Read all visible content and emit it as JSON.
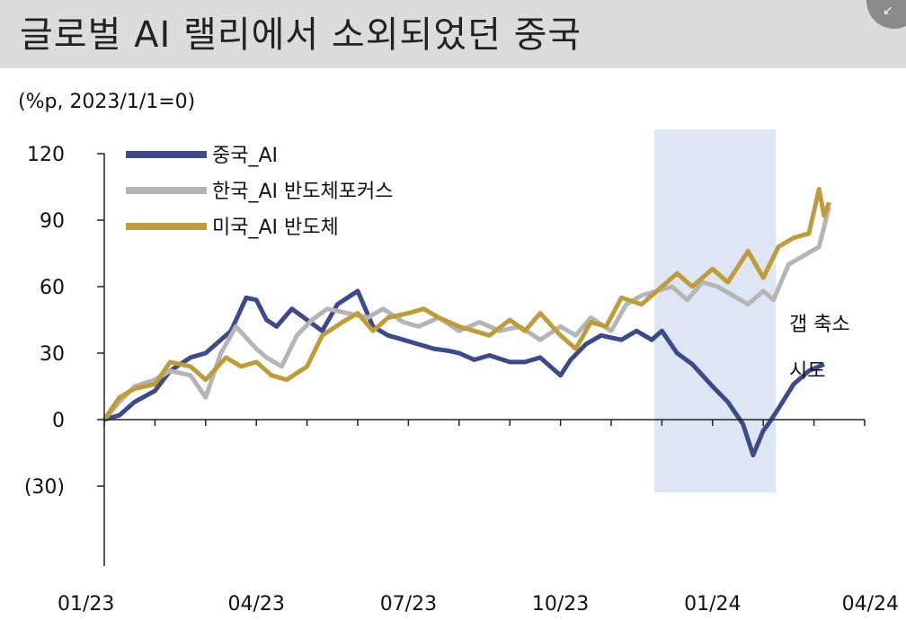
{
  "title": "글로벌 AI 랠리에서 소외되었던 중국",
  "corner_icon": "expand-arrow-icon",
  "chart_data": {
    "type": "line",
    "unit_label": "(%p, 2023/1/1=0)",
    "xlabel": "",
    "ylabel": "",
    "ylim": [
      -30,
      120
    ],
    "y_ticks": [
      "120",
      "90",
      "60",
      "30",
      "0",
      "(30)"
    ],
    "y_tick_values": [
      120,
      90,
      60,
      30,
      0,
      -30
    ],
    "x_ticks": [
      "01/23",
      "04/23",
      "07/23",
      "10/23",
      "01/24",
      "04/24"
    ],
    "x_tick_months": [
      0,
      3,
      6,
      9,
      12,
      15
    ],
    "grid": false,
    "legend_position": "top-left",
    "highlight_band": {
      "x_start": 10.85,
      "x_end": 13.25
    },
    "annotation": [
      "갭 축소",
      "시도"
    ],
    "series": [
      {
        "name": "중국_AI",
        "color": "#3d4a8a",
        "x": [
          0,
          0.3,
          0.6,
          1,
          1.3,
          1.7,
          2,
          2.2,
          2.5,
          2.8,
          3,
          3.2,
          3.4,
          3.7,
          4,
          4.3,
          4.6,
          5,
          5.3,
          5.6,
          5.9,
          6.2,
          6.5,
          6.8,
          7,
          7.3,
          7.6,
          8,
          8.3,
          8.6,
          9,
          9.2,
          9.5,
          9.8,
          10.2,
          10.5,
          10.8,
          11,
          11.3,
          11.6,
          12,
          12.3,
          12.6,
          12.8,
          13,
          13.1,
          13.3,
          13.6,
          13.9,
          14.2
        ],
        "y": [
          0,
          2,
          8,
          13,
          22,
          28,
          30,
          34,
          40,
          55,
          54,
          45,
          42,
          50,
          45,
          40,
          52,
          58,
          42,
          38,
          36,
          34,
          32,
          31,
          30,
          27,
          29,
          26,
          26,
          28,
          20,
          27,
          34,
          38,
          36,
          40,
          36,
          40,
          30,
          25,
          15,
          8,
          -2,
          -16,
          -5,
          -2,
          5,
          16,
          22,
          25
        ]
      },
      {
        "name": "한국_AI 반도체포커스",
        "color": "#b5b5b5",
        "x": [
          0,
          0.3,
          0.6,
          1,
          1.3,
          1.7,
          2,
          2.3,
          2.6,
          3,
          3.2,
          3.5,
          3.8,
          4.1,
          4.4,
          4.8,
          5.2,
          5.5,
          5.9,
          6.2,
          6.6,
          7,
          7.4,
          7.8,
          8.2,
          8.6,
          9,
          9.3,
          9.6,
          10,
          10.3,
          10.6,
          10.9,
          11.2,
          11.5,
          11.8,
          12.1,
          12.4,
          12.7,
          13,
          13.2,
          13.5,
          13.8,
          14.1,
          14.3
        ],
        "y": [
          0,
          8,
          15,
          18,
          22,
          20,
          10,
          30,
          42,
          32,
          28,
          24,
          38,
          45,
          50,
          48,
          46,
          50,
          44,
          42,
          46,
          40,
          44,
          40,
          42,
          36,
          42,
          38,
          46,
          40,
          52,
          56,
          58,
          60,
          54,
          62,
          60,
          56,
          52,
          58,
          54,
          70,
          74,
          78,
          96
        ]
      },
      {
        "name": "미국_AI 반도체",
        "color": "#bf9c3b",
        "x": [
          0,
          0.3,
          0.6,
          1,
          1.3,
          1.7,
          2,
          2.4,
          2.7,
          3,
          3.3,
          3.6,
          4,
          4.3,
          4.7,
          5,
          5.3,
          5.6,
          6,
          6.3,
          6.6,
          7,
          7.3,
          7.6,
          8,
          8.3,
          8.6,
          9,
          9.3,
          9.6,
          9.9,
          10.2,
          10.6,
          11,
          11.3,
          11.6,
          12,
          12.3,
          12.7,
          13,
          13.3,
          13.6,
          13.9,
          14.1,
          14.2,
          14.3
        ],
        "y": [
          0,
          10,
          14,
          16,
          26,
          24,
          18,
          28,
          24,
          26,
          20,
          18,
          24,
          38,
          44,
          48,
          40,
          46,
          48,
          50,
          46,
          42,
          40,
          38,
          45,
          40,
          48,
          38,
          32,
          44,
          42,
          55,
          52,
          60,
          66,
          60,
          68,
          62,
          76,
          64,
          78,
          82,
          84,
          104,
          92,
          98
        ]
      }
    ]
  }
}
